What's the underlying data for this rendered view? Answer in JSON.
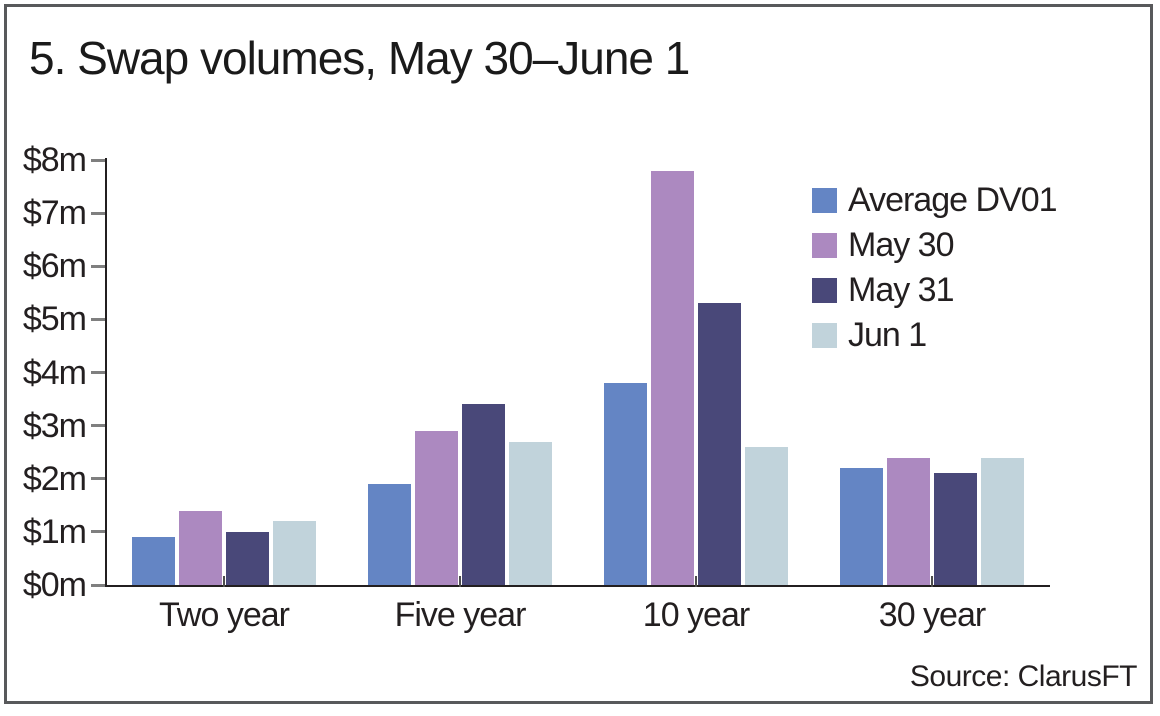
{
  "chart_data": {
    "type": "bar",
    "title": "5. Swap volumes, May 30–June 1",
    "categories": [
      "Two year",
      "Five year",
      "10 year",
      "30 year"
    ],
    "series": [
      {
        "name": "Average DV01",
        "color": "#6485c4",
        "values": [
          0.9,
          1.9,
          3.8,
          2.2
        ]
      },
      {
        "name": "May 30",
        "color": "#ac89c0",
        "values": [
          1.4,
          2.9,
          7.8,
          2.4
        ]
      },
      {
        "name": "May 31",
        "color": "#494879",
        "values": [
          1.0,
          3.4,
          5.3,
          2.1
        ]
      },
      {
        "name": "Jun 1",
        "color": "#c1d3db",
        "values": [
          1.2,
          2.7,
          2.6,
          2.4
        ]
      }
    ],
    "y_ticks": [
      "$0m",
      "$1m",
      "$2m",
      "$3m",
      "$4m",
      "$5m",
      "$6m",
      "$7m",
      "$8m"
    ],
    "ylim": [
      0,
      8
    ],
    "unit": "$m",
    "grid": false,
    "legend_position": "upper right",
    "frame_color": "#58595b",
    "axis_color": "#231f20"
  },
  "source": {
    "label": "Source: ClarusFT"
  }
}
